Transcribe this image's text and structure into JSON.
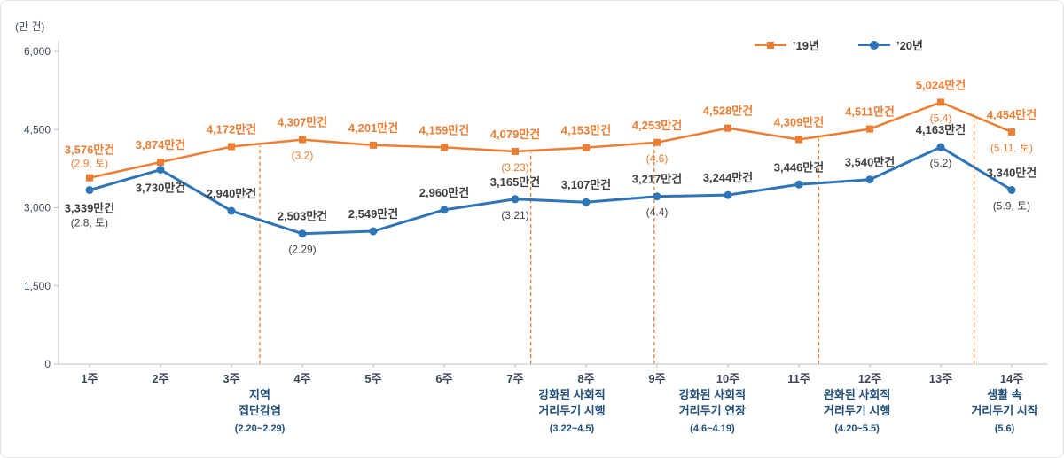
{
  "chart_data": {
    "type": "line",
    "title": "",
    "unit_label": "(만 건)",
    "categories": [
      "1주",
      "2주",
      "3주",
      "4주",
      "5주",
      "6주",
      "7주",
      "8주",
      "9주",
      "10주",
      "11주",
      "12주",
      "13주",
      "14주"
    ],
    "ylim": [
      0,
      6000
    ],
    "yticks": [
      0,
      1500,
      3000,
      4500,
      6000
    ],
    "ytick_labels": [
      "0",
      "1,500",
      "3,000",
      "4,500",
      "6,000"
    ],
    "legend_position": "top-right",
    "grid": "off",
    "series": [
      {
        "name": "’19년",
        "color": "#ED7D31",
        "label_color": "#ED7D31",
        "marker": "square",
        "values": [
          3576,
          3874,
          4172,
          4307,
          4201,
          4159,
          4079,
          4153,
          4253,
          4528,
          4309,
          4511,
          5024,
          4454
        ],
        "point_labels": [
          "3,576만건",
          "3,874만건",
          "4,172만건",
          "4,307만건",
          "4,201만건",
          "4,159만건",
          "4,079만건",
          "4,153만건",
          "4,253만건",
          "4,528만건",
          "4,309만건",
          "4,511만건",
          "5,024만건",
          "4,454만건"
        ],
        "point_sublabels": [
          "(2.9, 토)",
          "",
          "",
          "(3.2)",
          "",
          "",
          "(3.23)",
          "",
          "(4.6)",
          "",
          "",
          "",
          "(5.4)",
          "(5.11, 토)"
        ],
        "label_pos": [
          "above",
          "above",
          "above",
          "above",
          "above",
          "above",
          "above",
          "above",
          "above",
          "above",
          "above",
          "above",
          "above",
          "above"
        ],
        "sublabel_pos": [
          "above",
          "",
          "",
          "below",
          "",
          "",
          "below",
          "",
          "below",
          "",
          "",
          "",
          "below",
          "below"
        ]
      },
      {
        "name": "’20년",
        "color": "#2E75B6",
        "label_color": "#3f3f3f",
        "marker": "circle",
        "values": [
          3339,
          3730,
          2940,
          2503,
          2549,
          2960,
          3165,
          3107,
          3217,
          3244,
          3446,
          3540,
          4163,
          3340
        ],
        "point_labels": [
          "3,339만건",
          "3,730만건",
          "2,940만건",
          "2,503만건",
          "2,549만건",
          "2,960만건",
          "3,165만건",
          "3,107만건",
          "3,217만건",
          "3,244만건",
          "3,446만건",
          "3,540만건",
          "4,163만건",
          "3,340만건"
        ],
        "point_sublabels": [
          "(2.8, 토)",
          "",
          "",
          "(2.29)",
          "",
          "",
          "(3.21)",
          "",
          "(4.4)",
          "",
          "",
          "",
          "(5.2)",
          "(5.9, 토)"
        ],
        "label_pos": [
          "below",
          "below",
          "above",
          "above",
          "above",
          "above",
          "above",
          "above",
          "above",
          "above",
          "above",
          "above",
          "above",
          "above"
        ],
        "sublabel_pos": [
          "below",
          "",
          "",
          "below",
          "",
          "",
          "below",
          "",
          "below",
          "",
          "",
          "",
          "below",
          "below"
        ]
      }
    ],
    "annotations": [
      {
        "line_week": 3.4,
        "text_week": 3.4,
        "lines": [
          "지역",
          "집단감염"
        ],
        "date": "(2.20~2.29)"
      },
      {
        "line_week": 7.22,
        "text_week": 7.8,
        "lines": [
          "강화된 사회적",
          "거리두기 시행"
        ],
        "date": "(3.22~4.5)"
      },
      {
        "line_week": 8.96,
        "text_week": 9.78,
        "lines": [
          "강화된 사회적",
          "거리두기 연장"
        ],
        "date": "(4.6~4.19)"
      },
      {
        "line_week": 11.28,
        "text_week": 11.82,
        "lines": [
          "완화된 사회적",
          "거리두기 시행"
        ],
        "date": "(4.20~5.5)"
      },
      {
        "line_week": 13.47,
        "text_week": 13.9,
        "lines": [
          "생활 속",
          "거리두기 시작"
        ],
        "date": "(5.6)"
      }
    ]
  }
}
